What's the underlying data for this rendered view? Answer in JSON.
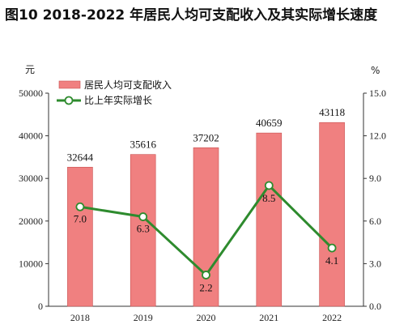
{
  "title": "图10   2018-2022 年居民人均可支配收入及其实际增长速度",
  "chart_data": {
    "type": "bar",
    "categories": [
      "2018",
      "2019",
      "2020",
      "2021",
      "2022"
    ],
    "series": [
      {
        "name": "居民人均可支配收入",
        "kind": "bar",
        "axis": "left",
        "values": [
          32644,
          35616,
          37202,
          40659,
          43118
        ],
        "labels": [
          "32644",
          "35616",
          "37202",
          "40659",
          "43118"
        ],
        "color": "#f08080"
      },
      {
        "name": "比上年实际增长",
        "kind": "line",
        "axis": "right",
        "values": [
          7.0,
          6.3,
          2.2,
          8.5,
          4.1
        ],
        "labels": [
          "7.0",
          "6.3",
          "2.2",
          "8.5",
          "4.1"
        ],
        "color": "#2e8b2e"
      }
    ],
    "left_axis": {
      "unit": "元",
      "ylim": [
        0,
        50000
      ],
      "ticks": [
        "0",
        "10000",
        "20000",
        "30000",
        "40000",
        "50000"
      ]
    },
    "right_axis": {
      "unit": "%",
      "ylim": [
        0,
        15
      ],
      "ticks": [
        "0.0",
        "3.0",
        "6.0",
        "9.0",
        "12.0",
        "15.0"
      ]
    },
    "legend_position": "top-left",
    "grid": false
  }
}
